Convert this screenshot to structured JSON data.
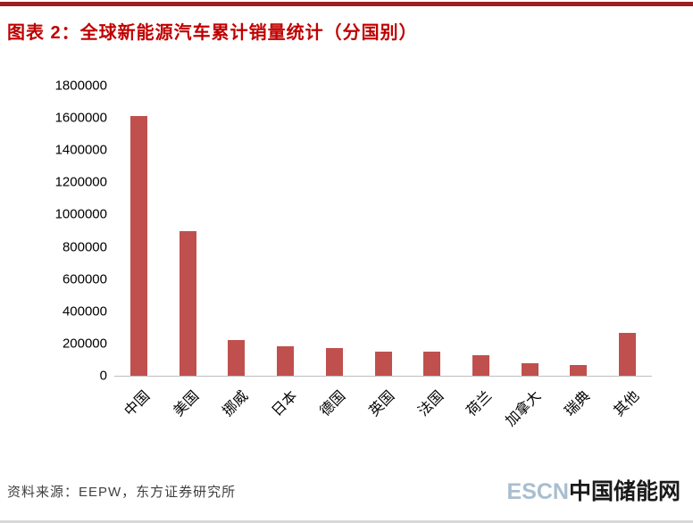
{
  "title": "图表 2：全球新能源汽车累计销量统计（分国别）",
  "chart_data": {
    "type": "bar",
    "title": "图表 2：全球新能源汽车累计销量统计（分国别）",
    "categories": [
      "中国",
      "美国",
      "挪威",
      "日本",
      "德国",
      "英国",
      "法国",
      "荷兰",
      "加拿大",
      "瑞典",
      "其他"
    ],
    "values": [
      1610000,
      900000,
      220000,
      185000,
      170000,
      150000,
      148000,
      125000,
      80000,
      65000,
      265000
    ],
    "xlabel": "",
    "ylabel": "",
    "ylim": [
      0,
      1800000
    ],
    "ytick_step": 200000,
    "grid": false,
    "legend": false
  },
  "footer": {
    "source": "资料来源：EEPW，东方证券研究所",
    "logo_left": "ESCN",
    "logo_right": "中国储能网"
  },
  "colors": {
    "title": "#C00000",
    "top_rule": "#9E1F1F",
    "bar": "#C0504D",
    "axis": "#BFBFBF",
    "source_text": "#404040",
    "logo_left": "#A9BECE",
    "logo_right": "#1A1A1A"
  }
}
